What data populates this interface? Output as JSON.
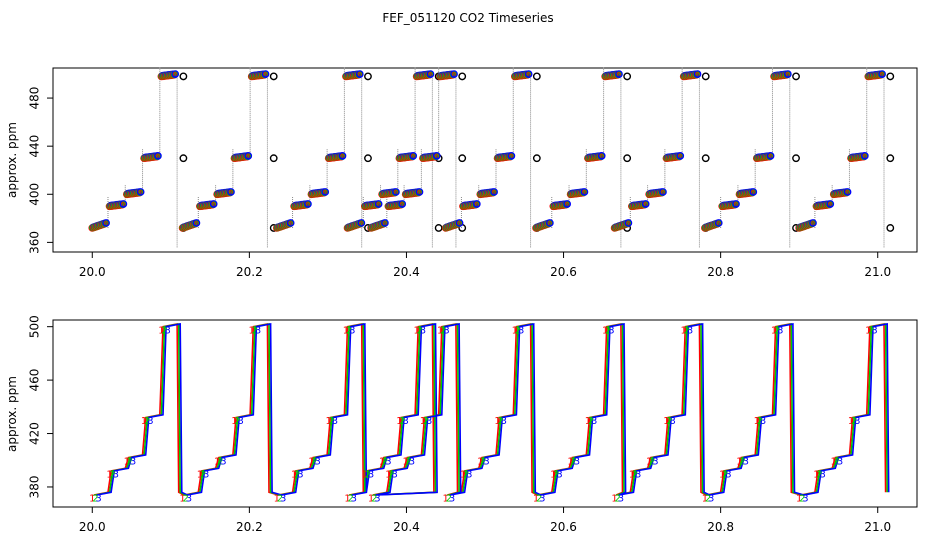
{
  "chart_data": [
    {
      "type": "scatter",
      "title": "FEF_051120  CO2 Timeseries",
      "xlabel": "",
      "ylabel": "approx. ppm",
      "xlim": [
        19.95,
        21.05
      ],
      "ylim": [
        352,
        505
      ],
      "xticks": [
        "20.0",
        "20.2",
        "20.4",
        "20.6",
        "20.8",
        "21.0"
      ],
      "yticks": [
        "360",
        "400",
        "440",
        "480"
      ],
      "levels_ppm": [
        372,
        390,
        400,
        430,
        498
      ],
      "series": [
        {
          "name": "black",
          "color": "#000000"
        },
        {
          "name": "red",
          "color": "#ff0000"
        },
        {
          "name": "green",
          "color": "#00cc00"
        },
        {
          "name": "blue",
          "color": "#0000ff"
        },
        {
          "name": "raw",
          "color": "#8a8a8a"
        }
      ],
      "cycle_starts": [
        20.0,
        20.115,
        20.235,
        20.325,
        20.355,
        20.45,
        20.565,
        20.665,
        20.78,
        20.9
      ]
    },
    {
      "type": "line",
      "title": "",
      "xlabel": "",
      "ylabel": "approx. ppm",
      "xlim": [
        19.95,
        21.05
      ],
      "ylim": [
        365,
        505
      ],
      "xticks": [
        "20.0",
        "20.2",
        "20.4",
        "20.6",
        "20.8",
        "21.0"
      ],
      "yticks": [
        "380",
        "420",
        "460",
        "500"
      ],
      "point_labels": [
        "1",
        "2",
        "3"
      ],
      "series": [
        {
          "name": "1",
          "color": "#ff0000"
        },
        {
          "name": "2",
          "color": "#00cc00"
        },
        {
          "name": "3",
          "color": "#0000ff"
        }
      ]
    }
  ]
}
